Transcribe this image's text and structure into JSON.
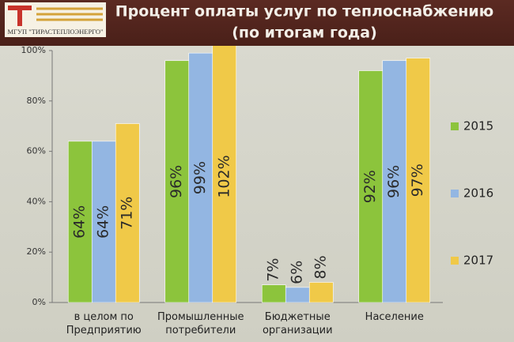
{
  "logo": "МГУП \"ТИРАСТЕПЛОЭНЕРГО\"",
  "chart_data": {
    "type": "bar",
    "title": "Процент оплаты услуг по теплоснабжению",
    "subtitle": "(по итогам года)",
    "categories": [
      "в целом по Предприятию",
      "Промышленные потребители",
      "Бюджетные организации",
      "Население"
    ],
    "series": [
      {
        "name": "2015",
        "color": "#8cc43c",
        "values": [
          64,
          96,
          7,
          92
        ],
        "value_labels": [
          "64%",
          "96%",
          "7%",
          "92%"
        ]
      },
      {
        "name": "2016",
        "color": "#93b6e2",
        "values": [
          64,
          99,
          6,
          96
        ],
        "value_labels": [
          "64%",
          "99%",
          "6%",
          "96%"
        ]
      },
      {
        "name": "2017",
        "color": "#f0c948",
        "values": [
          71,
          102,
          8,
          97
        ],
        "value_labels": [
          "71%",
          "102%",
          "8%",
          "97%"
        ]
      }
    ],
    "ylim": [
      0,
      100
    ],
    "yticks": [
      {
        "value": 0,
        "label": "0%"
      },
      {
        "value": 20,
        "label": "20%"
      },
      {
        "value": 40,
        "label": "40%"
      },
      {
        "value": 60,
        "label": "60%"
      },
      {
        "value": 80,
        "label": "80%"
      },
      {
        "value": 100,
        "label": "100%"
      }
    ],
    "legend": "right"
  }
}
